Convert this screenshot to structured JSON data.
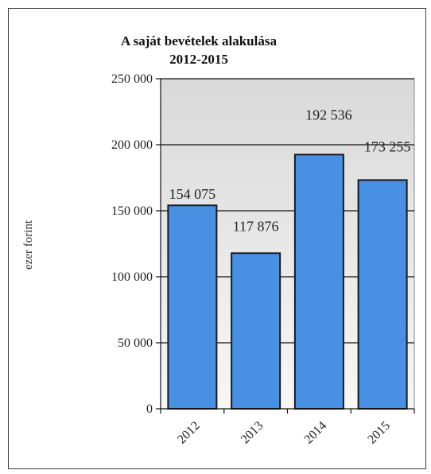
{
  "chart_data": {
    "type": "bar",
    "title": "A saját bevételek alakulása",
    "subtitle": "2012-2015",
    "ylabel": "ezer forint",
    "xlabel": "",
    "categories": [
      "2012",
      "2013",
      "2014",
      "2015"
    ],
    "values": [
      154075,
      117876,
      192536,
      173255
    ],
    "data_labels": [
      "154 075",
      "117 876",
      "192 536",
      "173 255"
    ],
    "yticks": [
      0,
      50000,
      100000,
      150000,
      200000,
      250000
    ],
    "ytick_labels": [
      "0",
      "50 000",
      "100 000",
      "150 000",
      "200 000",
      "250 000"
    ],
    "ylim": [
      0,
      250000
    ],
    "grid": true,
    "legend": "none",
    "colors": {
      "bar_fill": "#4a90e2",
      "bar_stroke": "#1a1a1a",
      "plot_bg_top": "#d9d9d9",
      "plot_bg_bottom": "#f7f7f7"
    }
  }
}
